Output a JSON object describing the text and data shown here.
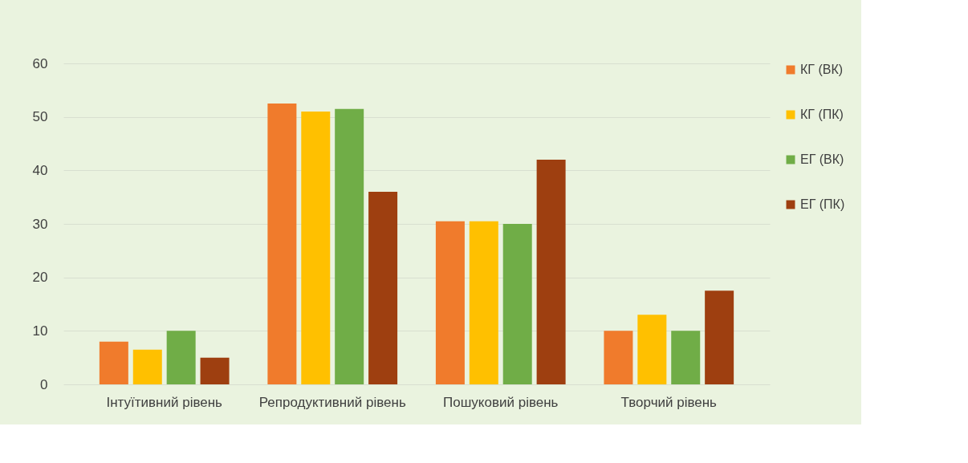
{
  "chart_data": {
    "type": "bar",
    "categories": [
      "Інтуїтивний рівень",
      "Репродуктивний рівень",
      "Пошуковий рівень",
      "Творчий рівень"
    ],
    "series": [
      {
        "name": "КГ (ВК)",
        "color": "#f07b2c",
        "values": [
          8,
          52.5,
          30.5,
          10
        ]
      },
      {
        "name": "КГ (ПК)",
        "color": "#ffc000",
        "values": [
          6.5,
          51,
          30.5,
          13
        ]
      },
      {
        "name": "ЕГ (ВК)",
        "color": "#70ad47",
        "values": [
          10,
          51.5,
          30,
          10
        ]
      },
      {
        "name": "ЕГ (ПК)",
        "color": "#9e3f10",
        "values": [
          5,
          36,
          42,
          17.5
        ]
      }
    ],
    "ylim": [
      0,
      60
    ],
    "yticks": [
      0,
      10,
      20,
      30,
      40,
      50,
      60
    ],
    "grid": "y",
    "legend": "right"
  }
}
